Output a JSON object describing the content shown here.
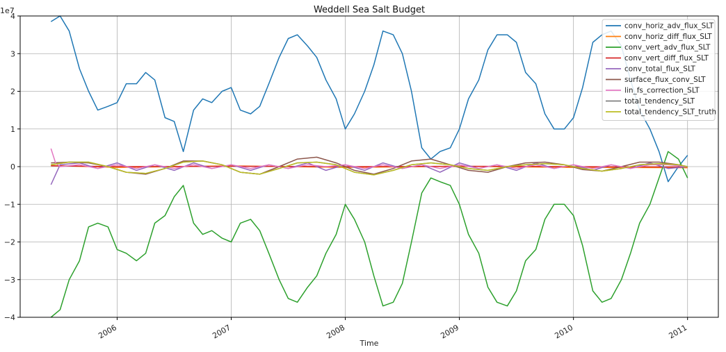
{
  "chart_data": {
    "type": "line",
    "title": "Weddell Sea Salt Budget",
    "xlabel": "Time",
    "ylabel": "",
    "y_offset_label": "1e7",
    "ylim": [
      -4,
      4
    ],
    "xlim": [
      2005.15,
      2011.27
    ],
    "x_ticks": [
      2006,
      2007,
      2008,
      2009,
      2010,
      2011
    ],
    "x_tick_labels": [
      "2006",
      "2007",
      "2008",
      "2009",
      "2010",
      "2011"
    ],
    "y_ticks": [
      -4,
      -3,
      -2,
      -1,
      0,
      1,
      2,
      3,
      4
    ],
    "y_tick_labels": [
      "−4",
      "−3",
      "−2",
      "−1",
      "0",
      "1",
      "2",
      "3",
      "4"
    ],
    "grid": true,
    "legend_position": "top-right",
    "series": [
      {
        "name": "conv_horiz_adv_flux_SLT",
        "color": "#1f77b4",
        "x": [
          2005.42,
          2005.5,
          2005.58,
          2005.67,
          2005.75,
          2005.83,
          2005.92,
          2006.0,
          2006.08,
          2006.17,
          2006.25,
          2006.33,
          2006.42,
          2006.5,
          2006.58,
          2006.67,
          2006.75,
          2006.83,
          2006.92,
          2007.0,
          2007.08,
          2007.17,
          2007.25,
          2007.33,
          2007.42,
          2007.5,
          2007.58,
          2007.67,
          2007.75,
          2007.83,
          2007.92,
          2008.0,
          2008.08,
          2008.17,
          2008.25,
          2008.33,
          2008.42,
          2008.5,
          2008.58,
          2008.67,
          2008.75,
          2008.83,
          2008.92,
          2009.0,
          2009.08,
          2009.17,
          2009.25,
          2009.33,
          2009.42,
          2009.5,
          2009.58,
          2009.67,
          2009.75,
          2009.83,
          2009.92,
          2010.0,
          2010.08,
          2010.17,
          2010.25,
          2010.33,
          2010.42,
          2010.5,
          2010.58,
          2010.67,
          2010.75,
          2010.83,
          2010.92,
          2011.0
        ],
        "values": [
          3.85,
          4.0,
          3.6,
          2.6,
          2.0,
          1.5,
          1.6,
          1.7,
          2.2,
          2.2,
          2.5,
          2.3,
          1.3,
          1.2,
          0.4,
          1.5,
          1.8,
          1.7,
          2.0,
          2.1,
          1.5,
          1.4,
          1.6,
          2.2,
          2.9,
          3.4,
          3.5,
          3.2,
          2.9,
          2.3,
          1.8,
          1.0,
          1.4,
          2.0,
          2.7,
          3.6,
          3.5,
          3.0,
          2.0,
          0.5,
          0.2,
          0.4,
          0.5,
          1.0,
          1.8,
          2.3,
          3.1,
          3.5,
          3.5,
          3.3,
          2.5,
          2.2,
          1.4,
          1.0,
          1.0,
          1.3,
          2.1,
          3.3,
          3.5,
          3.6,
          3.2,
          2.3,
          1.5,
          1.0,
          0.4,
          -0.4,
          0.0,
          0.3
        ]
      },
      {
        "name": "conv_horiz_diff_flux_SLT",
        "color": "#ff7f0e",
        "x": [
          2005.42,
          2006.0,
          2007.0,
          2008.0,
          2009.0,
          2010.0,
          2011.0
        ],
        "values": [
          0.03,
          -0.02,
          0.02,
          -0.02,
          0.01,
          -0.02,
          -0.03
        ]
      },
      {
        "name": "conv_vert_adv_flux_SLT",
        "color": "#2ca02c",
        "x": [
          2005.42,
          2005.5,
          2005.58,
          2005.67,
          2005.75,
          2005.83,
          2005.92,
          2006.0,
          2006.08,
          2006.17,
          2006.25,
          2006.33,
          2006.42,
          2006.5,
          2006.58,
          2006.67,
          2006.75,
          2006.83,
          2006.92,
          2007.0,
          2007.08,
          2007.17,
          2007.25,
          2007.33,
          2007.42,
          2007.5,
          2007.58,
          2007.67,
          2007.75,
          2007.83,
          2007.92,
          2008.0,
          2008.08,
          2008.17,
          2008.25,
          2008.33,
          2008.42,
          2008.5,
          2008.58,
          2008.67,
          2008.75,
          2008.83,
          2008.92,
          2009.0,
          2009.08,
          2009.17,
          2009.25,
          2009.33,
          2009.42,
          2009.5,
          2009.58,
          2009.67,
          2009.75,
          2009.83,
          2009.92,
          2010.0,
          2010.08,
          2010.17,
          2010.25,
          2010.33,
          2010.42,
          2010.5,
          2010.58,
          2010.67,
          2010.75,
          2010.83,
          2010.92,
          2011.0
        ],
        "values": [
          -4.0,
          -3.8,
          -3.0,
          -2.5,
          -1.6,
          -1.5,
          -1.6,
          -2.2,
          -2.3,
          -2.5,
          -2.3,
          -1.5,
          -1.3,
          -0.8,
          -0.5,
          -1.5,
          -1.8,
          -1.7,
          -1.9,
          -2.0,
          -1.5,
          -1.4,
          -1.7,
          -2.3,
          -3.0,
          -3.5,
          -3.6,
          -3.2,
          -2.9,
          -2.3,
          -1.8,
          -1.0,
          -1.4,
          -2.0,
          -2.9,
          -3.7,
          -3.6,
          -3.1,
          -2.0,
          -0.7,
          -0.3,
          -0.4,
          -0.5,
          -1.0,
          -1.8,
          -2.3,
          -3.2,
          -3.6,
          -3.7,
          -3.3,
          -2.5,
          -2.2,
          -1.4,
          -1.0,
          -1.0,
          -1.3,
          -2.1,
          -3.3,
          -3.6,
          -3.5,
          -3.0,
          -2.3,
          -1.5,
          -1.0,
          -0.3,
          0.4,
          0.2,
          -0.3
        ]
      },
      {
        "name": "conv_vert_diff_flux_SLT",
        "color": "#d62728",
        "x": [
          2005.42,
          2006.0,
          2007.0,
          2008.0,
          2009.0,
          2010.0,
          2011.0
        ],
        "values": [
          0.02,
          0.0,
          0.01,
          0.0,
          0.01,
          0.0,
          -0.01
        ]
      },
      {
        "name": "conv_total_flux_SLT",
        "color": "#9467bd",
        "x": [
          2005.42,
          2005.5,
          2005.67,
          2005.83,
          2006.0,
          2006.17,
          2006.33,
          2006.5,
          2006.67,
          2006.83,
          2007.0,
          2007.17,
          2007.33,
          2007.5,
          2007.67,
          2007.83,
          2008.0,
          2008.17,
          2008.33,
          2008.5,
          2008.67,
          2008.83,
          2009.0,
          2009.17,
          2009.33,
          2009.5,
          2009.67,
          2009.83,
          2010.0,
          2010.17,
          2010.33,
          2010.5,
          2010.67,
          2010.83,
          2011.0
        ],
        "values": [
          -0.48,
          0.05,
          0.1,
          -0.05,
          0.1,
          -0.1,
          0.05,
          -0.1,
          0.1,
          -0.05,
          0.05,
          -0.1,
          0.05,
          -0.05,
          0.1,
          -0.1,
          0.05,
          -0.1,
          0.1,
          -0.05,
          0.05,
          -0.15,
          0.1,
          -0.05,
          0.05,
          -0.1,
          0.1,
          -0.05,
          0.05,
          -0.1,
          0.05,
          -0.05,
          0.1,
          -0.05,
          0.0
        ]
      },
      {
        "name": "surface_flux_conv_SLT",
        "color": "#8c564b",
        "x": [
          2005.42,
          2005.58,
          2005.75,
          2005.92,
          2006.08,
          2006.25,
          2006.42,
          2006.58,
          2006.75,
          2006.92,
          2007.08,
          2007.25,
          2007.42,
          2007.58,
          2007.75,
          2007.92,
          2008.08,
          2008.25,
          2008.42,
          2008.58,
          2008.75,
          2008.92,
          2009.08,
          2009.25,
          2009.42,
          2009.58,
          2009.75,
          2009.92,
          2010.08,
          2010.25,
          2010.42,
          2010.58,
          2010.75,
          2010.92,
          2011.0
        ],
        "values": [
          0.1,
          0.12,
          0.1,
          0.0,
          -0.15,
          -0.2,
          -0.05,
          0.15,
          0.15,
          0.05,
          -0.15,
          -0.2,
          0.0,
          0.2,
          0.25,
          0.1,
          -0.1,
          -0.2,
          -0.05,
          0.15,
          0.2,
          0.05,
          -0.1,
          -0.15,
          0.0,
          0.1,
          0.12,
          0.05,
          -0.08,
          -0.12,
          0.0,
          0.12,
          0.12,
          0.05,
          0.0
        ]
      },
      {
        "name": "lin_fs_correction_SLT",
        "color": "#e377c2",
        "x": [
          2005.42,
          2005.46,
          2005.5,
          2005.67,
          2005.83,
          2006.0,
          2006.17,
          2006.33,
          2006.5,
          2006.67,
          2006.83,
          2007.0,
          2007.17,
          2007.33,
          2007.5,
          2007.67,
          2007.83,
          2008.0,
          2008.17,
          2008.33,
          2008.5,
          2008.67,
          2008.83,
          2009.0,
          2009.17,
          2009.33,
          2009.5,
          2009.67,
          2009.83,
          2010.0,
          2010.17,
          2010.33,
          2010.5,
          2010.67,
          2010.83,
          2011.0
        ],
        "values": [
          0.48,
          0.1,
          0.0,
          0.05,
          -0.05,
          0.05,
          -0.05,
          0.05,
          -0.05,
          0.05,
          -0.05,
          0.05,
          -0.05,
          0.05,
          -0.05,
          0.05,
          0.0,
          0.05,
          -0.05,
          0.05,
          -0.05,
          0.05,
          -0.05,
          0.05,
          -0.05,
          0.05,
          -0.05,
          0.05,
          -0.05,
          0.05,
          -0.05,
          0.05,
          -0.05,
          0.05,
          0.05,
          0.0
        ]
      },
      {
        "name": "total_tendency_SLT",
        "color": "#7f7f7f",
        "x": [
          2005.42,
          2005.58,
          2005.75,
          2005.92,
          2006.08,
          2006.25,
          2006.42,
          2006.58,
          2006.75,
          2006.92,
          2007.08,
          2007.25,
          2007.42,
          2007.58,
          2007.75,
          2007.92,
          2008.08,
          2008.25,
          2008.42,
          2008.58,
          2008.75,
          2008.92,
          2009.08,
          2009.25,
          2009.42,
          2009.58,
          2009.75,
          2009.92,
          2010.08,
          2010.25,
          2010.42,
          2010.58,
          2010.75,
          2010.92,
          2011.0
        ],
        "values": [
          0.05,
          0.12,
          0.12,
          0.0,
          -0.15,
          -0.18,
          -0.05,
          0.12,
          0.15,
          0.05,
          -0.15,
          -0.2,
          -0.05,
          0.1,
          0.12,
          0.05,
          -0.15,
          -0.22,
          -0.1,
          0.05,
          0.1,
          0.05,
          -0.05,
          -0.1,
          0.0,
          0.05,
          0.08,
          0.05,
          -0.05,
          -0.12,
          -0.05,
          0.05,
          0.08,
          0.05,
          0.0
        ]
      },
      {
        "name": "total_tendency_SLT_truth",
        "color": "#bcbd22",
        "x": [
          2005.42,
          2005.58,
          2005.75,
          2005.92,
          2006.08,
          2006.25,
          2006.42,
          2006.58,
          2006.75,
          2006.92,
          2007.08,
          2007.25,
          2007.42,
          2007.58,
          2007.75,
          2007.92,
          2008.08,
          2008.25,
          2008.42,
          2008.58,
          2008.75,
          2008.92,
          2009.08,
          2009.25,
          2009.42,
          2009.58,
          2009.75,
          2009.92,
          2010.08,
          2010.25,
          2010.42,
          2010.58,
          2010.75,
          2010.92,
          2011.0
        ],
        "values": [
          0.05,
          0.12,
          0.12,
          0.0,
          -0.15,
          -0.18,
          -0.05,
          0.12,
          0.15,
          0.05,
          -0.15,
          -0.2,
          -0.05,
          0.1,
          0.12,
          0.05,
          -0.15,
          -0.22,
          -0.1,
          0.05,
          0.1,
          0.05,
          -0.05,
          -0.1,
          0.0,
          0.05,
          0.08,
          0.05,
          -0.05,
          -0.12,
          -0.05,
          0.05,
          0.08,
          0.05,
          0.0
        ]
      }
    ]
  }
}
